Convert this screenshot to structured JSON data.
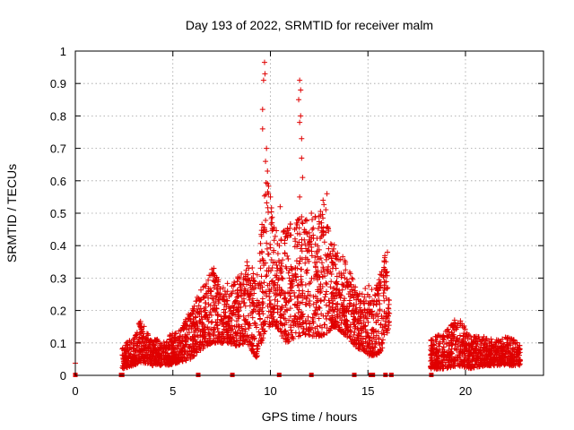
{
  "chart_data": {
    "type": "scatter",
    "title": "Day 193 of 2022, SRMTID for receiver malm",
    "xlabel": "GPS time / hours",
    "ylabel": "SRMTID / TECUs",
    "xlim": [
      0,
      24
    ],
    "ylim": [
      0,
      1
    ],
    "x_ticks": [
      0,
      5,
      10,
      15,
      20
    ],
    "x_tick_labels": [
      "0",
      "5",
      "10",
      "15",
      "20"
    ],
    "y_ticks": [
      0,
      0.1,
      0.2,
      0.3,
      0.4,
      0.5,
      0.6,
      0.7,
      0.8,
      0.9,
      1
    ],
    "y_tick_labels": [
      "0",
      "0.1",
      "0.2",
      "0.3",
      "0.4",
      "0.5",
      "0.6",
      "0.7",
      "0.8",
      "0.9",
      "1"
    ],
    "grid": true,
    "marker": "+",
    "color": "#e00000",
    "series": [
      {
        "name": "SRMTID",
        "envelope": [
          {
            "x": 0.0,
            "lo": 0.035,
            "hi": 0.04
          },
          {
            "x": 2.4,
            "lo": 0.02,
            "hi": 0.09
          },
          {
            "x": 3.0,
            "lo": 0.03,
            "hi": 0.12
          },
          {
            "x": 3.3,
            "lo": 0.04,
            "hi": 0.18
          },
          {
            "x": 4.0,
            "lo": 0.03,
            "hi": 0.11
          },
          {
            "x": 4.7,
            "lo": 0.03,
            "hi": 0.12
          },
          {
            "x": 5.3,
            "lo": 0.04,
            "hi": 0.14
          },
          {
            "x": 5.9,
            "lo": 0.05,
            "hi": 0.2
          },
          {
            "x": 6.5,
            "lo": 0.08,
            "hi": 0.28
          },
          {
            "x": 7.0,
            "lo": 0.1,
            "hi": 0.33
          },
          {
            "x": 7.6,
            "lo": 0.1,
            "hi": 0.28
          },
          {
            "x": 8.2,
            "lo": 0.09,
            "hi": 0.3
          },
          {
            "x": 8.8,
            "lo": 0.1,
            "hi": 0.35
          },
          {
            "x": 9.3,
            "lo": 0.05,
            "hi": 0.32
          },
          {
            "x": 9.8,
            "lo": 0.15,
            "hi": 0.62
          },
          {
            "x": 10.3,
            "lo": 0.15,
            "hi": 0.45
          },
          {
            "x": 10.8,
            "lo": 0.1,
            "hi": 0.45
          },
          {
            "x": 11.4,
            "lo": 0.12,
            "hi": 0.5
          },
          {
            "x": 12.0,
            "lo": 0.12,
            "hi": 0.48
          },
          {
            "x": 12.7,
            "lo": 0.12,
            "hi": 0.55
          },
          {
            "x": 13.3,
            "lo": 0.15,
            "hi": 0.4
          },
          {
            "x": 13.9,
            "lo": 0.12,
            "hi": 0.35
          },
          {
            "x": 14.5,
            "lo": 0.08,
            "hi": 0.25
          },
          {
            "x": 15.0,
            "lo": 0.06,
            "hi": 0.28
          },
          {
            "x": 15.5,
            "lo": 0.06,
            "hi": 0.28
          },
          {
            "x": 15.9,
            "lo": 0.1,
            "hi": 0.38
          },
          {
            "x": 16.1,
            "lo": 0.15,
            "hi": 0.25
          },
          {
            "x": 18.2,
            "lo": 0.02,
            "hi": 0.11
          },
          {
            "x": 19.0,
            "lo": 0.02,
            "hi": 0.14
          },
          {
            "x": 19.6,
            "lo": 0.03,
            "hi": 0.19
          },
          {
            "x": 20.3,
            "lo": 0.02,
            "hi": 0.12
          },
          {
            "x": 21.0,
            "lo": 0.03,
            "hi": 0.12
          },
          {
            "x": 21.6,
            "lo": 0.03,
            "hi": 0.11
          },
          {
            "x": 22.2,
            "lo": 0.03,
            "hi": 0.12
          },
          {
            "x": 22.8,
            "lo": 0.03,
            "hi": 0.1
          }
        ],
        "gaps_x": [
          [
            0.5,
            2.4
          ],
          [
            16.2,
            18.2
          ],
          [
            22.9,
            24.0
          ]
        ],
        "peaks": [
          {
            "x": 9.6,
            "y": 0.82
          },
          {
            "x": 9.65,
            "y": 0.91
          },
          {
            "x": 9.7,
            "y": 0.965
          },
          {
            "x": 9.72,
            "y": 0.93
          },
          {
            "x": 9.6,
            "y": 0.76
          },
          {
            "x": 9.75,
            "y": 0.66
          },
          {
            "x": 9.8,
            "y": 0.7
          },
          {
            "x": 9.85,
            "y": 0.63
          },
          {
            "x": 9.9,
            "y": 0.56
          },
          {
            "x": 10.0,
            "y": 0.55
          },
          {
            "x": 11.5,
            "y": 0.91
          },
          {
            "x": 11.55,
            "y": 0.88
          },
          {
            "x": 11.45,
            "y": 0.85
          },
          {
            "x": 11.55,
            "y": 0.8
          },
          {
            "x": 11.5,
            "y": 0.78
          },
          {
            "x": 11.6,
            "y": 0.73
          },
          {
            "x": 11.6,
            "y": 0.67
          },
          {
            "x": 11.65,
            "y": 0.61
          },
          {
            "x": 11.5,
            "y": 0.55
          },
          {
            "x": 12.9,
            "y": 0.56
          },
          {
            "x": 12.7,
            "y": 0.54
          },
          {
            "x": 10.5,
            "y": 0.52
          },
          {
            "x": 12.1,
            "y": 0.5
          },
          {
            "x": 16.0,
            "y": 0.38
          },
          {
            "x": 8.8,
            "y": 0.35
          },
          {
            "x": 7.1,
            "y": 0.33
          }
        ]
      }
    ],
    "x_gap_markers": [
      0.0,
      2.35,
      2.4,
      6.3,
      8.05,
      10.45,
      12.1,
      14.3,
      15.15,
      15.25,
      15.9,
      16.2,
      18.25
    ]
  }
}
